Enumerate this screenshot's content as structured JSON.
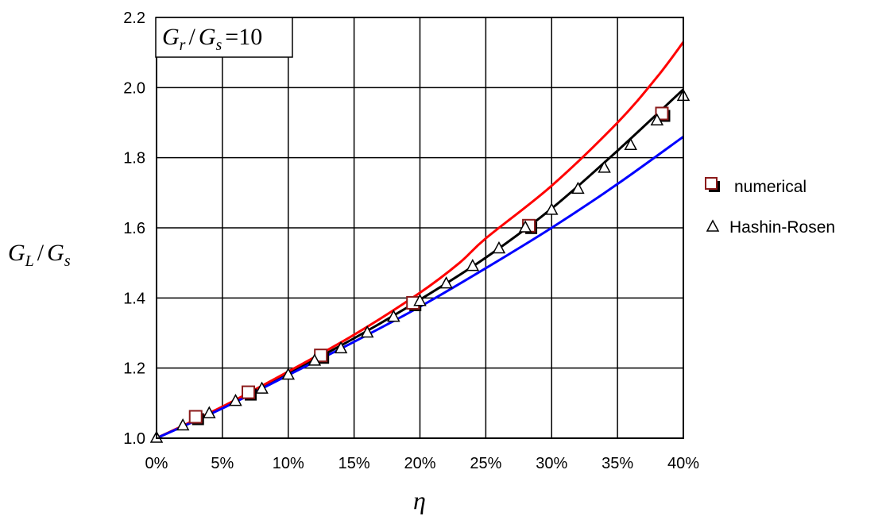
{
  "chart_data": {
    "type": "line",
    "xlabel": "η",
    "ylabel": {
      "main": "G",
      "sub1": "L",
      "slash": "/",
      "main2": "G",
      "sub2": "s"
    },
    "annotation": {
      "main": "G",
      "sub1": "r",
      "slash": "/",
      "main2": "G",
      "sub2": "s",
      "rhs": "=10"
    },
    "xlim": [
      0,
      0.4
    ],
    "ylim": [
      1.0,
      2.2
    ],
    "x_ticks": [
      0,
      0.05,
      0.1,
      0.15,
      0.2,
      0.25,
      0.3,
      0.35,
      0.4
    ],
    "x_tick_labels": [
      "0%",
      "5%",
      "10%",
      "15%",
      "20%",
      "25%",
      "30%",
      "35%",
      "40%"
    ],
    "y_ticks": [
      1.0,
      1.2,
      1.4,
      1.6,
      1.8,
      2.0,
      2.2
    ],
    "y_tick_labels": [
      "1.0",
      "1.2",
      "1.4",
      "1.6",
      "1.8",
      "2.0",
      "2.2"
    ],
    "grid": true,
    "legend_position": "right",
    "series": [
      {
        "name": "numerical",
        "marker": "square",
        "color": "#8b1a1a",
        "x": [
          0.03,
          0.07,
          0.125,
          0.195,
          0.283,
          0.384
        ],
        "y": [
          1.06,
          1.13,
          1.235,
          1.385,
          1.605,
          1.925
        ]
      },
      {
        "name": "Hashin-Rosen",
        "marker": "triangle",
        "color": "#000000",
        "x": [
          0,
          0.02,
          0.04,
          0.06,
          0.08,
          0.1,
          0.12,
          0.14,
          0.16,
          0.18,
          0.2,
          0.22,
          0.24,
          0.26,
          0.28,
          0.3,
          0.32,
          0.34,
          0.36,
          0.38,
          0.4
        ],
        "y": [
          1.0,
          1.035,
          1.07,
          1.105,
          1.14,
          1.18,
          1.22,
          1.255,
          1.3,
          1.345,
          1.39,
          1.44,
          1.49,
          1.54,
          1.6,
          1.65,
          1.71,
          1.77,
          1.835,
          1.905,
          1.975
        ]
      }
    ],
    "curves": [
      {
        "color": "#000000",
        "x": [
          0,
          0.05,
          0.1,
          0.15,
          0.2,
          0.25,
          0.3,
          0.35,
          0.4
        ],
        "y": [
          1.0,
          1.088,
          1.185,
          1.285,
          1.395,
          1.515,
          1.655,
          1.82,
          1.995
        ]
      },
      {
        "color": "#ff0000",
        "x": [
          0,
          0.05,
          0.1,
          0.15,
          0.2,
          0.23,
          0.25,
          0.3,
          0.35,
          0.38,
          0.4
        ],
        "y": [
          1.0,
          1.09,
          1.19,
          1.295,
          1.415,
          1.5,
          1.57,
          1.72,
          1.9,
          2.03,
          2.13
        ]
      },
      {
        "color": "#0000ff",
        "x": [
          0,
          0.05,
          0.1,
          0.15,
          0.2,
          0.25,
          0.3,
          0.35,
          0.4
        ],
        "y": [
          1.0,
          1.085,
          1.18,
          1.275,
          1.375,
          1.485,
          1.6,
          1.725,
          1.86
        ]
      }
    ]
  }
}
